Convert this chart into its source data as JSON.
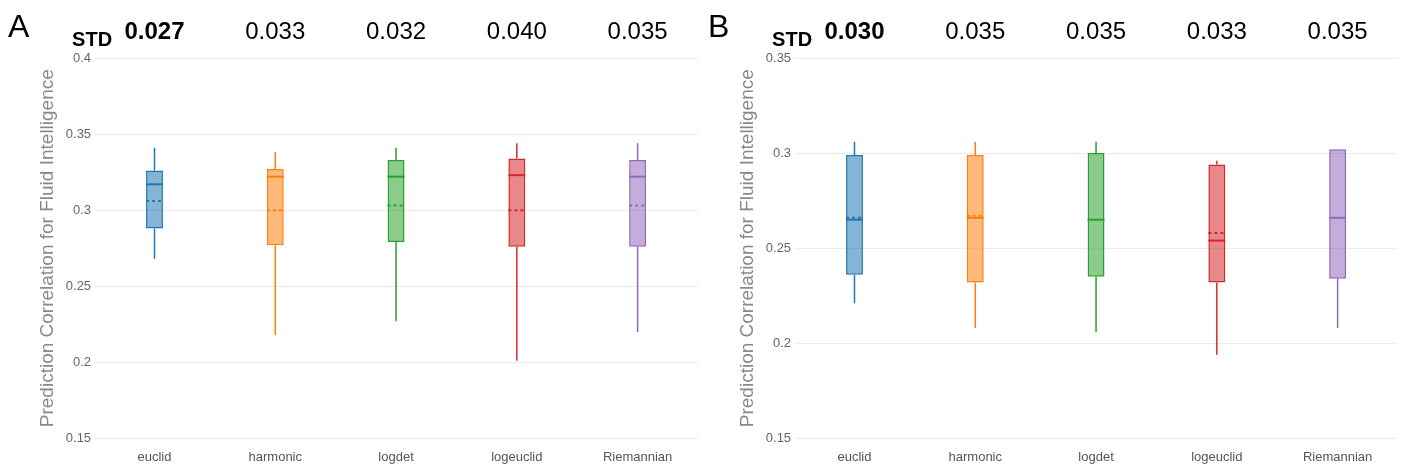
{
  "chart_data": [
    {
      "type": "box",
      "title": "A",
      "ylabel": "Prediction Correlation for Fluid Intelligence",
      "categories": [
        "euclid",
        "harmonic",
        "logdet",
        "logeuclid",
        "Riemannian"
      ],
      "colors": [
        "#1f77b4",
        "#ff7f0e",
        "#2ca02c",
        "#d62728",
        "#9467bd"
      ],
      "boxes": [
        {
          "low": 0.268,
          "q1": 0.288,
          "median": 0.317,
          "q3": 0.326,
          "high": 0.341,
          "mean": 0.306
        },
        {
          "low": 0.218,
          "q1": 0.277,
          "median": 0.322,
          "q3": 0.327,
          "high": 0.338,
          "mean": 0.3
        },
        {
          "low": 0.227,
          "q1": 0.279,
          "median": 0.322,
          "q3": 0.333,
          "high": 0.341,
          "mean": 0.303
        },
        {
          "low": 0.201,
          "q1": 0.276,
          "median": 0.323,
          "q3": 0.334,
          "high": 0.344,
          "mean": 0.3
        },
        {
          "low": 0.22,
          "q1": 0.276,
          "median": 0.322,
          "q3": 0.333,
          "high": 0.344,
          "mean": 0.303
        }
      ],
      "ylim": [
        0.15,
        0.4
      ],
      "yticks": [
        0.15,
        0.2,
        0.25,
        0.3,
        0.35,
        0.4
      ],
      "grid": "y",
      "annotations": [
        "STD",
        "0.027",
        "0.033",
        "0.032",
        "0.040",
        "0.035"
      ]
    },
    {
      "type": "box",
      "title": "B",
      "ylabel": "Prediction Correlation for Fluid Intelligence",
      "categories": [
        "euclid",
        "harmonic",
        "logdet",
        "logeuclid",
        "Riemannian"
      ],
      "colors": [
        "#1f77b4",
        "#ff7f0e",
        "#2ca02c",
        "#d62728",
        "#9467bd"
      ],
      "boxes": [
        {
          "low": 0.221,
          "q1": 0.236,
          "median": 0.265,
          "q3": 0.299,
          "high": 0.306,
          "mean": 0.266
        },
        {
          "low": 0.208,
          "q1": 0.232,
          "median": 0.266,
          "q3": 0.299,
          "high": 0.306,
          "mean": 0.267
        },
        {
          "low": 0.206,
          "q1": 0.235,
          "median": 0.265,
          "q3": 0.3,
          "high": 0.306
        },
        {
          "low": 0.194,
          "q1": 0.232,
          "median": 0.254,
          "q3": 0.294,
          "high": 0.296,
          "mean": 0.258
        },
        {
          "low": 0.208,
          "q1": 0.234,
          "median": 0.266,
          "q3": 0.302,
          "high": 0.302
        }
      ],
      "ylim": [
        0.15,
        0.35
      ],
      "yticks": [
        0.15,
        0.2,
        0.25,
        0.3,
        0.35
      ],
      "grid": "y",
      "annotations": [
        "STD",
        "0.030",
        "0.035",
        "0.035",
        "0.033",
        "0.035"
      ]
    }
  ]
}
